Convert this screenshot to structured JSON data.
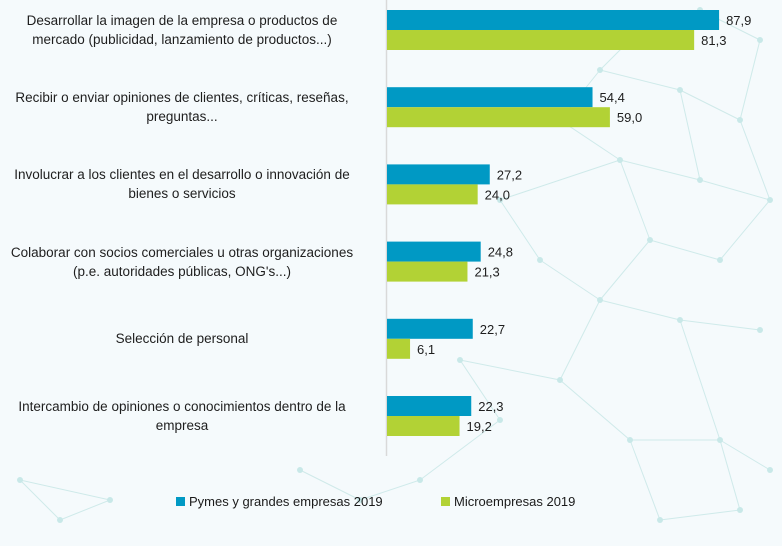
{
  "chart_data": {
    "type": "bar",
    "orientation": "horizontal",
    "title": "",
    "xlabel": "",
    "ylabel": "",
    "xlim": [
      0,
      100
    ],
    "grid": false,
    "legend_position": "bottom",
    "value_format": "decimal-comma",
    "categories": [
      "Desarrollar la imagen de la empresa o productos de mercado (publicidad, lanzamiento de productos...)",
      "Recibir o enviar opiniones de clientes, críticas, reseñas, preguntas...",
      "Involucrar a los clientes en el desarrollo o innovación de bienes o servicios",
      "Colaborar con socios comerciales u otras organizaciones (p.e. autoridades públicas, ONG's...)",
      "Selección de personal",
      "Intercambio de opiniones o conocimientos dentro de la empresa"
    ],
    "category_lines": [
      [
        "Desarrollar la imagen de la empresa o productos de",
        "mercado (publicidad, lanzamiento de productos...)"
      ],
      [
        "Recibir o enviar opiniones de clientes, críticas, reseñas,",
        "preguntas..."
      ],
      [
        "Involucrar a los clientes en el desarrollo o innovación de",
        "bienes o servicios"
      ],
      [
        "Colaborar con socios comerciales u otras organizaciones",
        "(p.e. autoridades públicas, ONG's...)"
      ],
      [
        "Selección de personal"
      ],
      [
        "Intercambio de opiniones o conocimientos dentro de la",
        "empresa"
      ]
    ],
    "series": [
      {
        "name": "Pymes y grandes empresas 2019",
        "color": "#0099c4",
        "values": [
          87.9,
          54.4,
          27.2,
          24.8,
          22.7,
          22.3
        ],
        "labels": [
          "87,9",
          "54,4",
          "27,2",
          "24,8",
          "22,7",
          "22,3"
        ]
      },
      {
        "name": "Microempresas 2019",
        "color": "#b2d235",
        "values": [
          81.3,
          59.0,
          24.0,
          21.3,
          6.1,
          19.2
        ],
        "labels": [
          "81,3",
          "59,0",
          "24,0",
          "21,3",
          "6,1",
          "19,2"
        ]
      }
    ]
  },
  "legend": {
    "items": [
      {
        "label": "Pymes y grandes empresas 2019",
        "color": "#0099c4"
      },
      {
        "label": "Microempresas 2019",
        "color": "#b2d235"
      }
    ]
  }
}
